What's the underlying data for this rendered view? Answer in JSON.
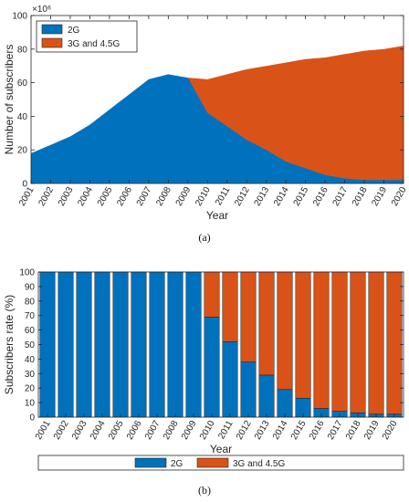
{
  "colors": {
    "s2g": "#0072BD",
    "s3g": "#D95319",
    "axis": "#262626",
    "frame": "#262626"
  },
  "chart_data": [
    {
      "panel": "a",
      "type": "area",
      "caption": "(a)",
      "xlabel": "Year",
      "ylabel": "Number of subscribers",
      "y_exponent": "×10⁶",
      "xlim": [
        2001,
        2020
      ],
      "ylim": [
        0,
        100
      ],
      "yticks": [
        0,
        20,
        40,
        60,
        80,
        100
      ],
      "x": [
        2001,
        2002,
        2003,
        2004,
        2005,
        2006,
        2007,
        2008,
        2009,
        2010,
        2011,
        2012,
        2013,
        2014,
        2015,
        2016,
        2017,
        2018,
        2019,
        2020
      ],
      "stacked": false,
      "legend_position": "top-left",
      "series": [
        {
          "name": "2G",
          "values": [
            18,
            23,
            28,
            35,
            44,
            53,
            62,
            65,
            63,
            42,
            34,
            26,
            20,
            13,
            9,
            5,
            3,
            2,
            2,
            2
          ]
        },
        {
          "name": "3G and 4.5G",
          "values": [
            null,
            null,
            null,
            null,
            null,
            null,
            null,
            null,
            63,
            62,
            65,
            68,
            70,
            72,
            74,
            75,
            77,
            79,
            80,
            82
          ]
        }
      ]
    },
    {
      "panel": "b",
      "type": "bar",
      "stacked": true,
      "caption": "(b)",
      "xlabel": "Year",
      "ylabel": "Subscribers rate (%)",
      "ylim": [
        0,
        100
      ],
      "yticks": [
        0,
        10,
        20,
        30,
        40,
        50,
        60,
        70,
        80,
        90,
        100
      ],
      "categories": [
        "2001",
        "2002",
        "2003",
        "2004",
        "2005",
        "2006",
        "2007",
        "2008",
        "2009",
        "2010",
        "2011",
        "2012",
        "2013",
        "2014",
        "2015",
        "2016",
        "2017",
        "2018",
        "2019",
        "2020"
      ],
      "legend_position": "bottom",
      "series": [
        {
          "name": "2G",
          "values": [
            100,
            100,
            100,
            100,
            100,
            100,
            100,
            100,
            100,
            69,
            52,
            38,
            29,
            19,
            13,
            6,
            4,
            3,
            2,
            2
          ]
        },
        {
          "name": "3G and 4.5G",
          "values": [
            0,
            0,
            0,
            0,
            0,
            0,
            0,
            0,
            0,
            31,
            48,
            62,
            71,
            81,
            87,
            94,
            96,
            97,
            98,
            98
          ]
        }
      ]
    }
  ]
}
